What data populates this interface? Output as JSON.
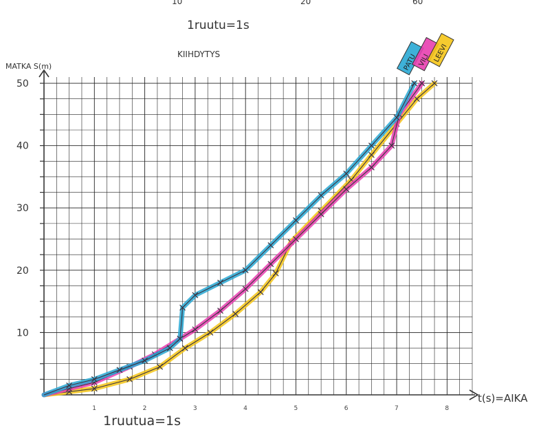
{
  "page": {
    "top_numbers": [
      "10",
      "20",
      "60"
    ],
    "scale_note_top": "1ruutu=1s",
    "scale_note_bottom": "1ruutua=1s"
  },
  "chart_data": {
    "type": "line",
    "title": "KIIHDYTYS",
    "xlabel": "t(s)=AIKA",
    "ylabel": "MATKA S(m)",
    "xlim": [
      0,
      8.5
    ],
    "ylim": [
      0,
      51
    ],
    "x_ticks": [
      1,
      2,
      3,
      4,
      5,
      6,
      7,
      8
    ],
    "x_tick_labels": [
      "1",
      "2",
      "3",
      "4",
      "5",
      "6",
      "7",
      "8"
    ],
    "y_ticks": [
      10,
      20,
      30,
      40,
      50
    ],
    "y_tick_labels": [
      "10",
      "20",
      "30",
      "40",
      "50"
    ],
    "grid": true,
    "legend": "top-right",
    "series": [
      {
        "name": "PATU",
        "color": "#29a8d4",
        "points": [
          [
            0,
            0
          ],
          [
            0.5,
            1.5
          ],
          [
            1.0,
            2.5
          ],
          [
            1.5,
            4.0
          ],
          [
            2.0,
            5.5
          ],
          [
            2.5,
            7.5
          ],
          [
            2.7,
            9.0
          ],
          [
            2.75,
            14.0
          ],
          [
            3.0,
            16.0
          ],
          [
            3.5,
            18.0
          ],
          [
            4.0,
            20.0
          ],
          [
            4.5,
            24.0
          ],
          [
            5.0,
            28.0
          ],
          [
            5.5,
            32.0
          ],
          [
            6.0,
            35.5
          ],
          [
            6.5,
            40.0
          ],
          [
            7.0,
            44.5
          ],
          [
            7.35,
            50.0
          ]
        ]
      },
      {
        "name": "VILI",
        "color": "#e83fb0",
        "points": [
          [
            0,
            0
          ],
          [
            0.5,
            1.0
          ],
          [
            1.0,
            2.0
          ],
          [
            1.7,
            4.5
          ],
          [
            2.2,
            6.5
          ],
          [
            2.7,
            9.0
          ],
          [
            3.0,
            10.5
          ],
          [
            3.5,
            13.5
          ],
          [
            4.0,
            17.0
          ],
          [
            4.5,
            21.0
          ],
          [
            5.0,
            25.0
          ],
          [
            5.5,
            29.0
          ],
          [
            6.0,
            33.0
          ],
          [
            6.5,
            36.5
          ],
          [
            6.9,
            40.0
          ],
          [
            7.05,
            45.0
          ],
          [
            7.5,
            50.0
          ]
        ]
      },
      {
        "name": "LEEVI",
        "color": "#f5c518",
        "points": [
          [
            0,
            0
          ],
          [
            0.5,
            0.5
          ],
          [
            1.0,
            1.0
          ],
          [
            1.7,
            2.5
          ],
          [
            2.3,
            4.5
          ],
          [
            2.8,
            7.5
          ],
          [
            3.3,
            10.0
          ],
          [
            3.8,
            13.0
          ],
          [
            4.3,
            16.5
          ],
          [
            4.6,
            19.5
          ],
          [
            4.9,
            24.5
          ],
          [
            5.5,
            29.5
          ],
          [
            6.1,
            34.5
          ],
          [
            6.5,
            38.5
          ],
          [
            7.0,
            43.5
          ],
          [
            7.4,
            47.5
          ],
          [
            7.75,
            50.0
          ]
        ]
      }
    ]
  }
}
